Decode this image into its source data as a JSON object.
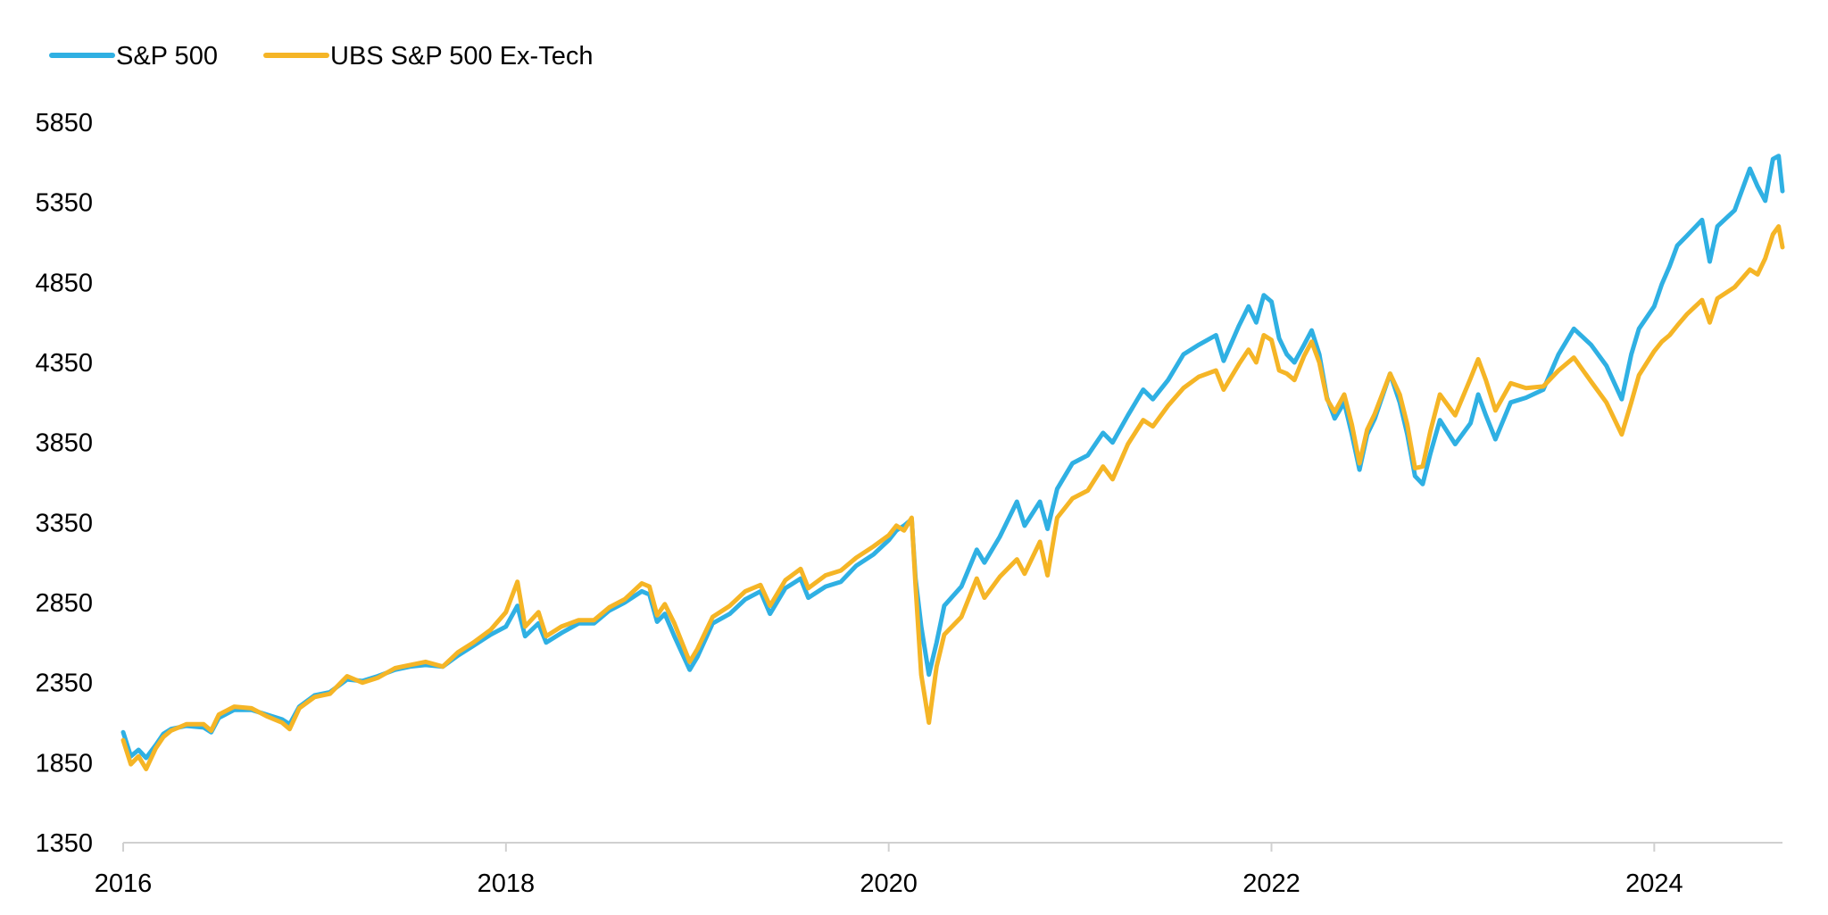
{
  "chart_data": {
    "type": "line",
    "title": "",
    "xlabel": "",
    "ylabel": "",
    "legend_position": "top-left",
    "grid": false,
    "xlim": [
      2016.0,
      2024.67
    ],
    "ylim": [
      1350,
      5850
    ],
    "x_ticks": [
      "2016",
      "2018",
      "2020",
      "2022",
      "2024"
    ],
    "y_ticks": [
      "1350",
      "1850",
      "2350",
      "2850",
      "3350",
      "3850",
      "4350",
      "4850",
      "5350",
      "5850"
    ],
    "series": [
      {
        "name": "S&P 500",
        "color": "#2fb0e3",
        "points": [
          [
            2016.0,
            2040
          ],
          [
            2016.04,
            1890
          ],
          [
            2016.08,
            1930
          ],
          [
            2016.12,
            1880
          ],
          [
            2016.17,
            1960
          ],
          [
            2016.21,
            2030
          ],
          [
            2016.25,
            2060
          ],
          [
            2016.33,
            2080
          ],
          [
            2016.42,
            2070
          ],
          [
            2016.46,
            2040
          ],
          [
            2016.5,
            2130
          ],
          [
            2016.58,
            2180
          ],
          [
            2016.67,
            2180
          ],
          [
            2016.75,
            2150
          ],
          [
            2016.83,
            2120
          ],
          [
            2016.87,
            2090
          ],
          [
            2016.92,
            2200
          ],
          [
            2017.0,
            2270
          ],
          [
            2017.08,
            2290
          ],
          [
            2017.17,
            2370
          ],
          [
            2017.25,
            2360
          ],
          [
            2017.33,
            2390
          ],
          [
            2017.42,
            2430
          ],
          [
            2017.5,
            2450
          ],
          [
            2017.58,
            2460
          ],
          [
            2017.67,
            2450
          ],
          [
            2017.75,
            2520
          ],
          [
            2017.83,
            2580
          ],
          [
            2017.92,
            2650
          ],
          [
            2018.0,
            2700
          ],
          [
            2018.06,
            2830
          ],
          [
            2018.1,
            2640
          ],
          [
            2018.17,
            2720
          ],
          [
            2018.21,
            2600
          ],
          [
            2018.29,
            2660
          ],
          [
            2018.38,
            2720
          ],
          [
            2018.46,
            2720
          ],
          [
            2018.54,
            2800
          ],
          [
            2018.62,
            2850
          ],
          [
            2018.71,
            2920
          ],
          [
            2018.75,
            2900
          ],
          [
            2018.79,
            2730
          ],
          [
            2018.83,
            2780
          ],
          [
            2018.88,
            2640
          ],
          [
            2018.96,
            2430
          ],
          [
            2019.0,
            2510
          ],
          [
            2019.08,
            2720
          ],
          [
            2019.17,
            2780
          ],
          [
            2019.25,
            2870
          ],
          [
            2019.33,
            2920
          ],
          [
            2019.38,
            2780
          ],
          [
            2019.46,
            2940
          ],
          [
            2019.54,
            3000
          ],
          [
            2019.58,
            2880
          ],
          [
            2019.67,
            2950
          ],
          [
            2019.75,
            2980
          ],
          [
            2019.83,
            3080
          ],
          [
            2019.92,
            3150
          ],
          [
            2020.0,
            3240
          ],
          [
            2020.04,
            3300
          ],
          [
            2020.08,
            3330
          ],
          [
            2020.12,
            3370
          ],
          [
            2020.14,
            3000
          ],
          [
            2020.17,
            2700
          ],
          [
            2020.21,
            2400
          ],
          [
            2020.25,
            2600
          ],
          [
            2020.29,
            2830
          ],
          [
            2020.38,
            2950
          ],
          [
            2020.46,
            3180
          ],
          [
            2020.5,
            3100
          ],
          [
            2020.58,
            3260
          ],
          [
            2020.67,
            3480
          ],
          [
            2020.71,
            3330
          ],
          [
            2020.79,
            3480
          ],
          [
            2020.83,
            3310
          ],
          [
            2020.88,
            3560
          ],
          [
            2020.96,
            3720
          ],
          [
            2021.04,
            3770
          ],
          [
            2021.12,
            3910
          ],
          [
            2021.17,
            3850
          ],
          [
            2021.25,
            4020
          ],
          [
            2021.33,
            4180
          ],
          [
            2021.38,
            4120
          ],
          [
            2021.46,
            4240
          ],
          [
            2021.54,
            4400
          ],
          [
            2021.62,
            4460
          ],
          [
            2021.71,
            4520
          ],
          [
            2021.75,
            4360
          ],
          [
            2021.83,
            4580
          ],
          [
            2021.88,
            4700
          ],
          [
            2021.92,
            4600
          ],
          [
            2021.96,
            4770
          ],
          [
            2022.0,
            4730
          ],
          [
            2022.04,
            4500
          ],
          [
            2022.08,
            4400
          ],
          [
            2022.12,
            4350
          ],
          [
            2022.17,
            4460
          ],
          [
            2022.21,
            4550
          ],
          [
            2022.25,
            4400
          ],
          [
            2022.29,
            4130
          ],
          [
            2022.33,
            4000
          ],
          [
            2022.38,
            4100
          ],
          [
            2022.42,
            3900
          ],
          [
            2022.46,
            3680
          ],
          [
            2022.5,
            3900
          ],
          [
            2022.54,
            4000
          ],
          [
            2022.62,
            4280
          ],
          [
            2022.67,
            4100
          ],
          [
            2022.71,
            3900
          ],
          [
            2022.75,
            3640
          ],
          [
            2022.79,
            3590
          ],
          [
            2022.83,
            3780
          ],
          [
            2022.88,
            3990
          ],
          [
            2022.96,
            3840
          ],
          [
            2023.04,
            3970
          ],
          [
            2023.08,
            4150
          ],
          [
            2023.12,
            4020
          ],
          [
            2023.17,
            3870
          ],
          [
            2023.25,
            4100
          ],
          [
            2023.33,
            4130
          ],
          [
            2023.42,
            4180
          ],
          [
            2023.5,
            4400
          ],
          [
            2023.58,
            4560
          ],
          [
            2023.67,
            4460
          ],
          [
            2023.75,
            4330
          ],
          [
            2023.83,
            4120
          ],
          [
            2023.88,
            4400
          ],
          [
            2023.92,
            4560
          ],
          [
            2024.0,
            4700
          ],
          [
            2024.04,
            4840
          ],
          [
            2024.08,
            4950
          ],
          [
            2024.12,
            5080
          ],
          [
            2024.17,
            5140
          ],
          [
            2024.25,
            5240
          ],
          [
            2024.29,
            4980
          ],
          [
            2024.33,
            5200
          ],
          [
            2024.42,
            5300
          ],
          [
            2024.5,
            5560
          ],
          [
            2024.54,
            5450
          ],
          [
            2024.58,
            5360
          ],
          [
            2024.62,
            5620
          ],
          [
            2024.65,
            5640
          ],
          [
            2024.67,
            5420
          ]
        ]
      },
      {
        "name": "UBS S&P 500 Ex-Tech",
        "color": "#f5b526",
        "points": [
          [
            2016.0,
            1990
          ],
          [
            2016.04,
            1840
          ],
          [
            2016.08,
            1890
          ],
          [
            2016.12,
            1810
          ],
          [
            2016.17,
            1940
          ],
          [
            2016.21,
            2010
          ],
          [
            2016.25,
            2050
          ],
          [
            2016.33,
            2090
          ],
          [
            2016.42,
            2090
          ],
          [
            2016.46,
            2050
          ],
          [
            2016.5,
            2150
          ],
          [
            2016.58,
            2200
          ],
          [
            2016.67,
            2190
          ],
          [
            2016.75,
            2140
          ],
          [
            2016.83,
            2100
          ],
          [
            2016.87,
            2060
          ],
          [
            2016.92,
            2190
          ],
          [
            2017.0,
            2260
          ],
          [
            2017.08,
            2280
          ],
          [
            2017.17,
            2390
          ],
          [
            2017.25,
            2350
          ],
          [
            2017.33,
            2380
          ],
          [
            2017.42,
            2440
          ],
          [
            2017.5,
            2460
          ],
          [
            2017.58,
            2480
          ],
          [
            2017.67,
            2450
          ],
          [
            2017.75,
            2540
          ],
          [
            2017.83,
            2600
          ],
          [
            2017.92,
            2680
          ],
          [
            2018.0,
            2790
          ],
          [
            2018.06,
            2980
          ],
          [
            2018.1,
            2700
          ],
          [
            2018.17,
            2790
          ],
          [
            2018.21,
            2640
          ],
          [
            2018.29,
            2700
          ],
          [
            2018.38,
            2740
          ],
          [
            2018.46,
            2740
          ],
          [
            2018.54,
            2820
          ],
          [
            2018.62,
            2870
          ],
          [
            2018.71,
            2970
          ],
          [
            2018.75,
            2950
          ],
          [
            2018.79,
            2770
          ],
          [
            2018.83,
            2840
          ],
          [
            2018.88,
            2720
          ],
          [
            2018.96,
            2480
          ],
          [
            2019.0,
            2560
          ],
          [
            2019.08,
            2760
          ],
          [
            2019.17,
            2830
          ],
          [
            2019.25,
            2920
          ],
          [
            2019.33,
            2960
          ],
          [
            2019.38,
            2830
          ],
          [
            2019.46,
            2990
          ],
          [
            2019.54,
            3060
          ],
          [
            2019.58,
            2940
          ],
          [
            2019.67,
            3020
          ],
          [
            2019.75,
            3050
          ],
          [
            2019.83,
            3130
          ],
          [
            2019.92,
            3200
          ],
          [
            2020.0,
            3270
          ],
          [
            2020.04,
            3330
          ],
          [
            2020.08,
            3300
          ],
          [
            2020.12,
            3380
          ],
          [
            2020.14,
            2960
          ],
          [
            2020.17,
            2400
          ],
          [
            2020.21,
            2100
          ],
          [
            2020.25,
            2450
          ],
          [
            2020.29,
            2650
          ],
          [
            2020.38,
            2760
          ],
          [
            2020.46,
            3000
          ],
          [
            2020.5,
            2880
          ],
          [
            2020.58,
            3010
          ],
          [
            2020.67,
            3120
          ],
          [
            2020.71,
            3030
          ],
          [
            2020.79,
            3230
          ],
          [
            2020.83,
            3020
          ],
          [
            2020.88,
            3380
          ],
          [
            2020.96,
            3500
          ],
          [
            2021.04,
            3550
          ],
          [
            2021.12,
            3700
          ],
          [
            2021.17,
            3620
          ],
          [
            2021.25,
            3840
          ],
          [
            2021.33,
            3990
          ],
          [
            2021.38,
            3950
          ],
          [
            2021.46,
            4080
          ],
          [
            2021.54,
            4190
          ],
          [
            2021.62,
            4260
          ],
          [
            2021.71,
            4300
          ],
          [
            2021.75,
            4180
          ],
          [
            2021.83,
            4340
          ],
          [
            2021.88,
            4430
          ],
          [
            2021.92,
            4350
          ],
          [
            2021.96,
            4520
          ],
          [
            2022.0,
            4490
          ],
          [
            2022.04,
            4300
          ],
          [
            2022.08,
            4280
          ],
          [
            2022.12,
            4240
          ],
          [
            2022.17,
            4390
          ],
          [
            2022.21,
            4480
          ],
          [
            2022.25,
            4350
          ],
          [
            2022.29,
            4120
          ],
          [
            2022.33,
            4040
          ],
          [
            2022.38,
            4150
          ],
          [
            2022.42,
            3960
          ],
          [
            2022.46,
            3720
          ],
          [
            2022.5,
            3930
          ],
          [
            2022.54,
            4030
          ],
          [
            2022.62,
            4280
          ],
          [
            2022.67,
            4150
          ],
          [
            2022.71,
            3960
          ],
          [
            2022.75,
            3690
          ],
          [
            2022.79,
            3700
          ],
          [
            2022.83,
            3920
          ],
          [
            2022.88,
            4150
          ],
          [
            2022.96,
            4020
          ],
          [
            2023.04,
            4250
          ],
          [
            2023.08,
            4370
          ],
          [
            2023.12,
            4240
          ],
          [
            2023.17,
            4050
          ],
          [
            2023.25,
            4220
          ],
          [
            2023.33,
            4190
          ],
          [
            2023.42,
            4200
          ],
          [
            2023.5,
            4300
          ],
          [
            2023.58,
            4380
          ],
          [
            2023.67,
            4230
          ],
          [
            2023.75,
            4100
          ],
          [
            2023.83,
            3900
          ],
          [
            2023.88,
            4100
          ],
          [
            2023.92,
            4270
          ],
          [
            2024.0,
            4420
          ],
          [
            2024.04,
            4480
          ],
          [
            2024.08,
            4520
          ],
          [
            2024.12,
            4580
          ],
          [
            2024.17,
            4650
          ],
          [
            2024.25,
            4740
          ],
          [
            2024.29,
            4600
          ],
          [
            2024.33,
            4750
          ],
          [
            2024.42,
            4820
          ],
          [
            2024.5,
            4930
          ],
          [
            2024.54,
            4900
          ],
          [
            2024.58,
            5000
          ],
          [
            2024.62,
            5150
          ],
          [
            2024.65,
            5200
          ],
          [
            2024.67,
            5070
          ]
        ]
      }
    ]
  }
}
